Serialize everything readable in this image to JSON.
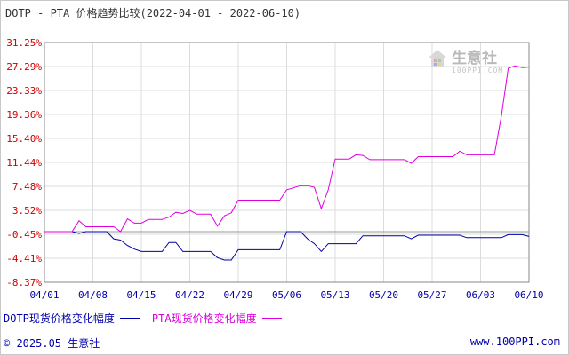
{
  "title": "DOTP - PTA 价格趋势比较(2022-04-01 - 2022-06-10)",
  "watermark": {
    "name": "生意社",
    "url": "100PPI.COM"
  },
  "legend": {
    "dotp": "DOTP现货价格变化幅度",
    "pta": "PTA现货价格变化幅度"
  },
  "footer": {
    "copyright": "© 2025.05 生意社",
    "site": "www.100PPI.com"
  },
  "colors": {
    "dotp": "#0000aa",
    "pta": "#dd00dd",
    "ytick": "#cc0000",
    "xtick": "#0000aa",
    "grid": "#dcdcdc",
    "axis": "#888888"
  },
  "chart_data": {
    "type": "line",
    "title": "DOTP - PTA 价格趋势比较(2022-04-01 - 2022-06-10)",
    "xlabel": "",
    "ylabel": "",
    "x_ticks": [
      "04/01",
      "04/08",
      "04/15",
      "04/22",
      "04/29",
      "05/06",
      "05/13",
      "05/20",
      "05/27",
      "06/03",
      "06/10"
    ],
    "y_ticks": [
      "31.25%",
      "27.29%",
      "23.33%",
      "19.36%",
      "15.40%",
      "11.44%",
      "7.48%",
      "3.52%",
      "-0.45%",
      "-4.41%",
      "-8.37%"
    ],
    "ylim": [
      -8.37,
      31.25
    ],
    "xlim": [
      "2022-04-01",
      "2022-06-10"
    ],
    "grid": true,
    "legend_position": "bottom-left",
    "series": [
      {
        "name": "DOTP现货价格变化幅度",
        "color": "#0000aa",
        "points": [
          [
            "2022-04-01",
            0.0
          ],
          [
            "2022-04-05",
            0.0
          ],
          [
            "2022-04-06",
            -0.3
          ],
          [
            "2022-04-07",
            0.0
          ],
          [
            "2022-04-10",
            0.0
          ],
          [
            "2022-04-11",
            -1.2
          ],
          [
            "2022-04-12",
            -1.4
          ],
          [
            "2022-04-13",
            -2.3
          ],
          [
            "2022-04-14",
            -2.9
          ],
          [
            "2022-04-15",
            -3.3
          ],
          [
            "2022-04-18",
            -3.3
          ],
          [
            "2022-04-19",
            -1.8
          ],
          [
            "2022-04-20",
            -1.8
          ],
          [
            "2022-04-21",
            -3.3
          ],
          [
            "2022-04-25",
            -3.3
          ],
          [
            "2022-04-26",
            -4.3
          ],
          [
            "2022-04-27",
            -4.7
          ],
          [
            "2022-04-28",
            -4.7
          ],
          [
            "2022-04-29",
            -3.0
          ],
          [
            "2022-05-05",
            -3.0
          ],
          [
            "2022-05-06",
            0.0
          ],
          [
            "2022-05-08",
            0.0
          ],
          [
            "2022-05-09",
            -1.2
          ],
          [
            "2022-05-10",
            -2.0
          ],
          [
            "2022-05-11",
            -3.3
          ],
          [
            "2022-05-12",
            -2.0
          ],
          [
            "2022-05-16",
            -2.0
          ],
          [
            "2022-05-17",
            -0.7
          ],
          [
            "2022-05-23",
            -0.7
          ],
          [
            "2022-05-24",
            -1.2
          ],
          [
            "2022-05-25",
            -0.6
          ],
          [
            "2022-05-31",
            -0.6
          ],
          [
            "2022-06-01",
            -1.0
          ],
          [
            "2022-06-06",
            -1.0
          ],
          [
            "2022-06-07",
            -0.5
          ],
          [
            "2022-06-09",
            -0.5
          ],
          [
            "2022-06-10",
            -0.8
          ]
        ]
      },
      {
        "name": "PTA现货价格变化幅度",
        "color": "#dd00dd",
        "points": [
          [
            "2022-04-01",
            0.0
          ],
          [
            "2022-04-05",
            0.0
          ],
          [
            "2022-04-06",
            1.8
          ],
          [
            "2022-04-07",
            0.8
          ],
          [
            "2022-04-08",
            0.8
          ],
          [
            "2022-04-11",
            0.8
          ],
          [
            "2022-04-12",
            0.0
          ],
          [
            "2022-04-13",
            2.1
          ],
          [
            "2022-04-14",
            1.4
          ],
          [
            "2022-04-15",
            1.4
          ],
          [
            "2022-04-16",
            2.0
          ],
          [
            "2022-04-18",
            2.0
          ],
          [
            "2022-04-19",
            2.4
          ],
          [
            "2022-04-20",
            3.2
          ],
          [
            "2022-04-21",
            3.0
          ],
          [
            "2022-04-22",
            3.5
          ],
          [
            "2022-04-23",
            2.9
          ],
          [
            "2022-04-25",
            2.9
          ],
          [
            "2022-04-26",
            0.9
          ],
          [
            "2022-04-27",
            2.6
          ],
          [
            "2022-04-28",
            3.1
          ],
          [
            "2022-04-29",
            5.2
          ],
          [
            "2022-05-05",
            5.2
          ],
          [
            "2022-05-06",
            6.9
          ],
          [
            "2022-05-08",
            7.6
          ],
          [
            "2022-05-09",
            7.6
          ],
          [
            "2022-05-10",
            7.3
          ],
          [
            "2022-05-11",
            3.8
          ],
          [
            "2022-05-12",
            6.9
          ],
          [
            "2022-05-13",
            12.0
          ],
          [
            "2022-05-15",
            12.0
          ],
          [
            "2022-05-16",
            12.7
          ],
          [
            "2022-05-17",
            12.6
          ],
          [
            "2022-05-18",
            11.9
          ],
          [
            "2022-05-23",
            11.9
          ],
          [
            "2022-05-24",
            11.3
          ],
          [
            "2022-05-25",
            12.4
          ],
          [
            "2022-05-26",
            12.4
          ],
          [
            "2022-05-30",
            12.4
          ],
          [
            "2022-05-31",
            13.3
          ],
          [
            "2022-06-01",
            12.7
          ],
          [
            "2022-06-05",
            12.7
          ],
          [
            "2022-06-06",
            19.1
          ],
          [
            "2022-06-07",
            27.0
          ],
          [
            "2022-06-08",
            27.4
          ],
          [
            "2022-06-09",
            27.1
          ],
          [
            "2022-06-10",
            27.2
          ]
        ]
      }
    ]
  }
}
